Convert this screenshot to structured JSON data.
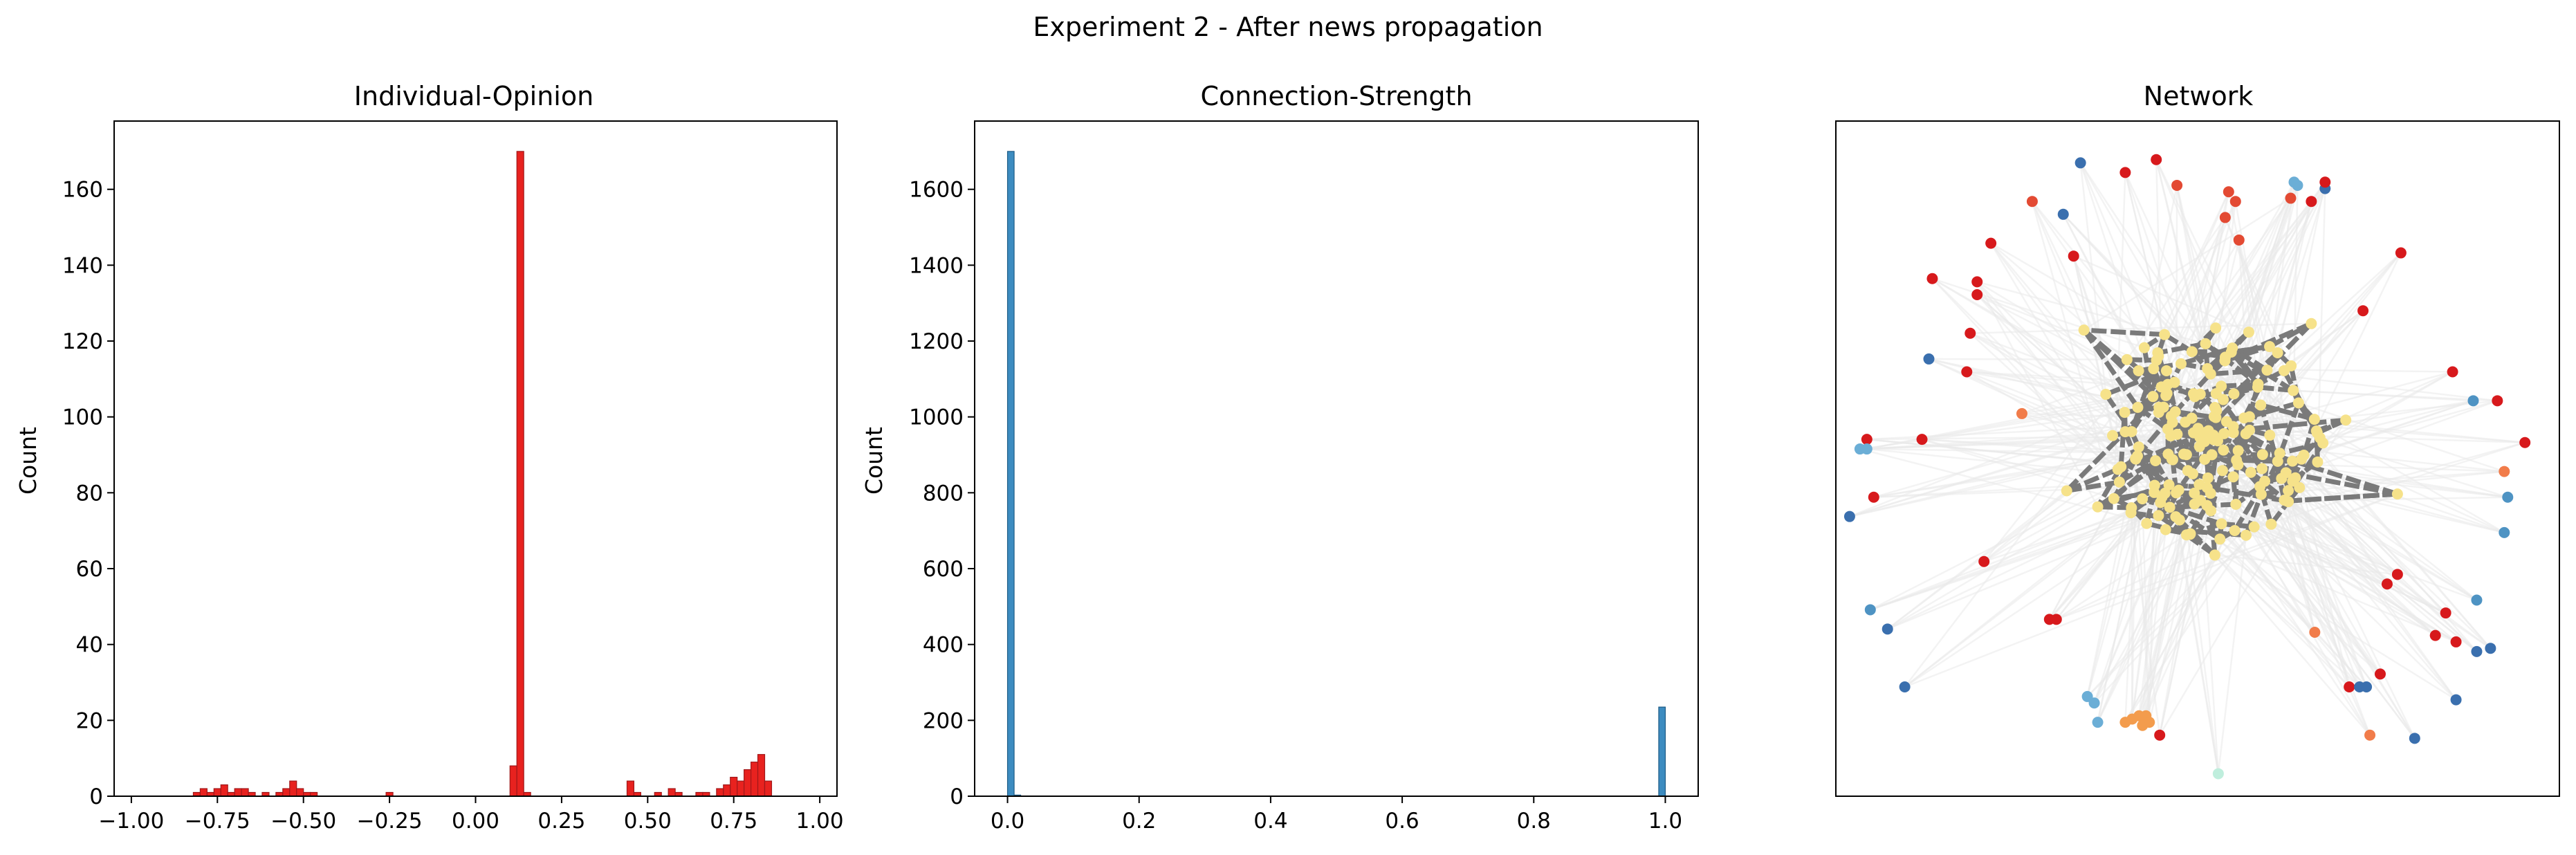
{
  "figure_title": "Experiment 2 - After news propagation",
  "colors": {
    "opinion_bar": "#e8221f",
    "opinion_edge": "#a0181a",
    "strength_bar": "#3d8cc0",
    "strength_edge": "#1e5c86",
    "node_core": "#f6e28a",
    "edge_core": "#7a7a7a",
    "edge_faint": "#e9e9e9"
  },
  "chart_data": [
    {
      "type": "bar",
      "title": "Individual-Opinion",
      "xlabel": "",
      "ylabel": "Count",
      "xlim": [
        -1.05,
        1.05
      ],
      "ylim": [
        0,
        178
      ],
      "xticks": [
        -1.0,
        -0.75,
        -0.5,
        -0.25,
        0.0,
        0.25,
        0.5,
        0.75,
        1.0
      ],
      "xtick_labels": [
        "−1.00",
        "−0.75",
        "−0.50",
        "−0.25",
        "0.00",
        "0.25",
        "0.50",
        "0.75",
        "1.00"
      ],
      "yticks": [
        0,
        20,
        40,
        60,
        80,
        100,
        120,
        140,
        160
      ],
      "ytick_labels": [
        "0",
        "20",
        "40",
        "60",
        "80",
        "100",
        "120",
        "140",
        "160"
      ],
      "grid": false,
      "legend": "none",
      "bin_width": 0.02,
      "bins": [
        {
          "x": -0.82,
          "count": 1
        },
        {
          "x": -0.8,
          "count": 2
        },
        {
          "x": -0.78,
          "count": 1
        },
        {
          "x": -0.76,
          "count": 2
        },
        {
          "x": -0.74,
          "count": 3
        },
        {
          "x": -0.72,
          "count": 1
        },
        {
          "x": -0.7,
          "count": 2
        },
        {
          "x": -0.68,
          "count": 2
        },
        {
          "x": -0.66,
          "count": 1
        },
        {
          "x": -0.62,
          "count": 1
        },
        {
          "x": -0.58,
          "count": 1
        },
        {
          "x": -0.56,
          "count": 2
        },
        {
          "x": -0.54,
          "count": 4
        },
        {
          "x": -0.52,
          "count": 2
        },
        {
          "x": -0.5,
          "count": 1
        },
        {
          "x": -0.48,
          "count": 1
        },
        {
          "x": -0.26,
          "count": 1
        },
        {
          "x": 0.1,
          "count": 8
        },
        {
          "x": 0.12,
          "count": 170
        },
        {
          "x": 0.14,
          "count": 1
        },
        {
          "x": 0.44,
          "count": 4
        },
        {
          "x": 0.46,
          "count": 1
        },
        {
          "x": 0.52,
          "count": 1
        },
        {
          "x": 0.56,
          "count": 2
        },
        {
          "x": 0.58,
          "count": 1
        },
        {
          "x": 0.64,
          "count": 1
        },
        {
          "x": 0.66,
          "count": 1
        },
        {
          "x": 0.7,
          "count": 2
        },
        {
          "x": 0.72,
          "count": 3
        },
        {
          "x": 0.74,
          "count": 5
        },
        {
          "x": 0.76,
          "count": 4
        },
        {
          "x": 0.78,
          "count": 7
        },
        {
          "x": 0.8,
          "count": 9
        },
        {
          "x": 0.82,
          "count": 11
        },
        {
          "x": 0.84,
          "count": 4
        }
      ]
    },
    {
      "type": "bar",
      "title": "Connection-Strength",
      "xlabel": "",
      "ylabel": "Count",
      "xlim": [
        -0.05,
        1.05
      ],
      "ylim": [
        0,
        1780
      ],
      "xticks": [
        0.0,
        0.2,
        0.4,
        0.6,
        0.8,
        1.0
      ],
      "xtick_labels": [
        "0.0",
        "0.2",
        "0.4",
        "0.6",
        "0.8",
        "1.0"
      ],
      "yticks": [
        0,
        200,
        400,
        600,
        800,
        1000,
        1200,
        1400,
        1600
      ],
      "ytick_labels": [
        "0",
        "200",
        "400",
        "600",
        "800",
        "1000",
        "1200",
        "1400",
        "1600"
      ],
      "grid": false,
      "legend": "none",
      "bin_width": 0.01,
      "bins": [
        {
          "x": 0.0,
          "count": 1700
        },
        {
          "x": 0.01,
          "count": 3
        },
        {
          "x": 0.99,
          "count": 235
        }
      ]
    },
    {
      "type": "scatter",
      "title": "Network",
      "xlabel": "",
      "ylabel": "",
      "xlim": [
        -1.05,
        1.05
      ],
      "ylim": [
        -1.05,
        1.05
      ],
      "axes_ticks": "hidden",
      "grid": false,
      "legend": "none",
      "peripheral_nodes": [
        {
          "x": -0.34,
          "y": 0.92,
          "color": "#3a6fae"
        },
        {
          "x": -0.21,
          "y": 0.89,
          "color": "#d7191c"
        },
        {
          "x": -0.12,
          "y": 0.93,
          "color": "#d7191c"
        },
        {
          "x": 0.28,
          "y": 0.86,
          "color": "#6baed6"
        },
        {
          "x": 0.29,
          "y": 0.85,
          "color": "#6baed6"
        },
        {
          "x": 0.37,
          "y": 0.84,
          "color": "#3a6fae"
        },
        {
          "x": 0.37,
          "y": 0.86,
          "color": "#d7191c"
        },
        {
          "x": 0.09,
          "y": 0.83,
          "color": "#e34a33"
        },
        {
          "x": 0.11,
          "y": 0.8,
          "color": "#e34a33"
        },
        {
          "x": 0.08,
          "y": 0.75,
          "color": "#e34a33"
        },
        {
          "x": -0.06,
          "y": 0.85,
          "color": "#e34a33"
        },
        {
          "x": -0.39,
          "y": 0.76,
          "color": "#3a6fae"
        },
        {
          "x": -0.48,
          "y": 0.8,
          "color": "#e34a33"
        },
        {
          "x": 0.27,
          "y": 0.81,
          "color": "#e34a33"
        },
        {
          "x": 0.33,
          "y": 0.8,
          "color": "#d7191c"
        },
        {
          "x": 0.12,
          "y": 0.68,
          "color": "#e34a33"
        },
        {
          "x": -0.36,
          "y": 0.63,
          "color": "#d7191c"
        },
        {
          "x": -0.6,
          "y": 0.67,
          "color": "#d7191c"
        },
        {
          "x": -0.77,
          "y": 0.56,
          "color": "#d7191c"
        },
        {
          "x": -0.64,
          "y": 0.55,
          "color": "#d7191c"
        },
        {
          "x": -0.64,
          "y": 0.51,
          "color": "#d7191c"
        },
        {
          "x": 0.59,
          "y": 0.64,
          "color": "#d7191c"
        },
        {
          "x": 0.48,
          "y": 0.46,
          "color": "#d7191c"
        },
        {
          "x": -0.66,
          "y": 0.39,
          "color": "#d7191c"
        },
        {
          "x": -0.78,
          "y": 0.31,
          "color": "#3a6fae"
        },
        {
          "x": -0.67,
          "y": 0.27,
          "color": "#d7191c"
        },
        {
          "x": -0.51,
          "y": 0.14,
          "color": "#f17c4a"
        },
        {
          "x": 0.74,
          "y": 0.27,
          "color": "#d7191c"
        },
        {
          "x": 0.8,
          "y": 0.18,
          "color": "#4e93c3"
        },
        {
          "x": 0.87,
          "y": 0.18,
          "color": "#d7191c"
        },
        {
          "x": 0.95,
          "y": 0.05,
          "color": "#d7191c"
        },
        {
          "x": -0.8,
          "y": 0.06,
          "color": "#d7191c"
        },
        {
          "x": -0.96,
          "y": 0.06,
          "color": "#d7191c"
        },
        {
          "x": -0.98,
          "y": 0.03,
          "color": "#6baed6"
        },
        {
          "x": -0.96,
          "y": 0.03,
          "color": "#6baed6"
        },
        {
          "x": 0.89,
          "y": -0.04,
          "color": "#f17c4a"
        },
        {
          "x": -0.94,
          "y": -0.12,
          "color": "#d7191c"
        },
        {
          "x": 0.9,
          "y": -0.12,
          "color": "#4e93c3"
        },
        {
          "x": -1.01,
          "y": -0.18,
          "color": "#3a6fae"
        },
        {
          "x": 0.89,
          "y": -0.23,
          "color": "#4e93c3"
        },
        {
          "x": -0.62,
          "y": -0.32,
          "color": "#d7191c"
        },
        {
          "x": 0.58,
          "y": -0.36,
          "color": "#d7191c"
        },
        {
          "x": 0.55,
          "y": -0.39,
          "color": "#d7191c"
        },
        {
          "x": 0.81,
          "y": -0.44,
          "color": "#4e93c3"
        },
        {
          "x": -0.95,
          "y": -0.47,
          "color": "#4e93c3"
        },
        {
          "x": -0.43,
          "y": -0.5,
          "color": "#d7191c"
        },
        {
          "x": -0.41,
          "y": -0.5,
          "color": "#d7191c"
        },
        {
          "x": 0.72,
          "y": -0.48,
          "color": "#d7191c"
        },
        {
          "x": -0.9,
          "y": -0.53,
          "color": "#3a6fae"
        },
        {
          "x": 0.34,
          "y": -0.54,
          "color": "#f17c4a"
        },
        {
          "x": 0.69,
          "y": -0.55,
          "color": "#d7191c"
        },
        {
          "x": 0.75,
          "y": -0.57,
          "color": "#d7191c"
        },
        {
          "x": 0.81,
          "y": -0.6,
          "color": "#3a6fae"
        },
        {
          "x": 0.85,
          "y": -0.59,
          "color": "#3a6fae"
        },
        {
          "x": -0.85,
          "y": -0.71,
          "color": "#3a6fae"
        },
        {
          "x": 0.53,
          "y": -0.67,
          "color": "#d7191c"
        },
        {
          "x": 0.44,
          "y": -0.71,
          "color": "#d7191c"
        },
        {
          "x": 0.47,
          "y": -0.71,
          "color": "#3a6fae"
        },
        {
          "x": 0.49,
          "y": -0.71,
          "color": "#3a6fae"
        },
        {
          "x": 0.75,
          "y": -0.75,
          "color": "#3a6fae"
        },
        {
          "x": -0.32,
          "y": -0.74,
          "color": "#6baed6"
        },
        {
          "x": -0.3,
          "y": -0.76,
          "color": "#6baed6"
        },
        {
          "x": -0.29,
          "y": -0.82,
          "color": "#6baed6"
        },
        {
          "x": 0.5,
          "y": -0.86,
          "color": "#f17c4a"
        },
        {
          "x": 0.63,
          "y": -0.87,
          "color": "#3a6fae"
        },
        {
          "x": -0.11,
          "y": -0.86,
          "color": "#d7191c"
        },
        {
          "x": 0.06,
          "y": -0.98,
          "color": "#bfeedd"
        }
      ],
      "orange_cluster": [
        {
          "x": -0.21,
          "y": -0.82
        },
        {
          "x": -0.19,
          "y": -0.81
        },
        {
          "x": -0.17,
          "y": -0.8
        },
        {
          "x": -0.15,
          "y": -0.8
        },
        {
          "x": -0.14,
          "y": -0.82
        },
        {
          "x": -0.16,
          "y": -0.83
        }
      ]
    }
  ]
}
